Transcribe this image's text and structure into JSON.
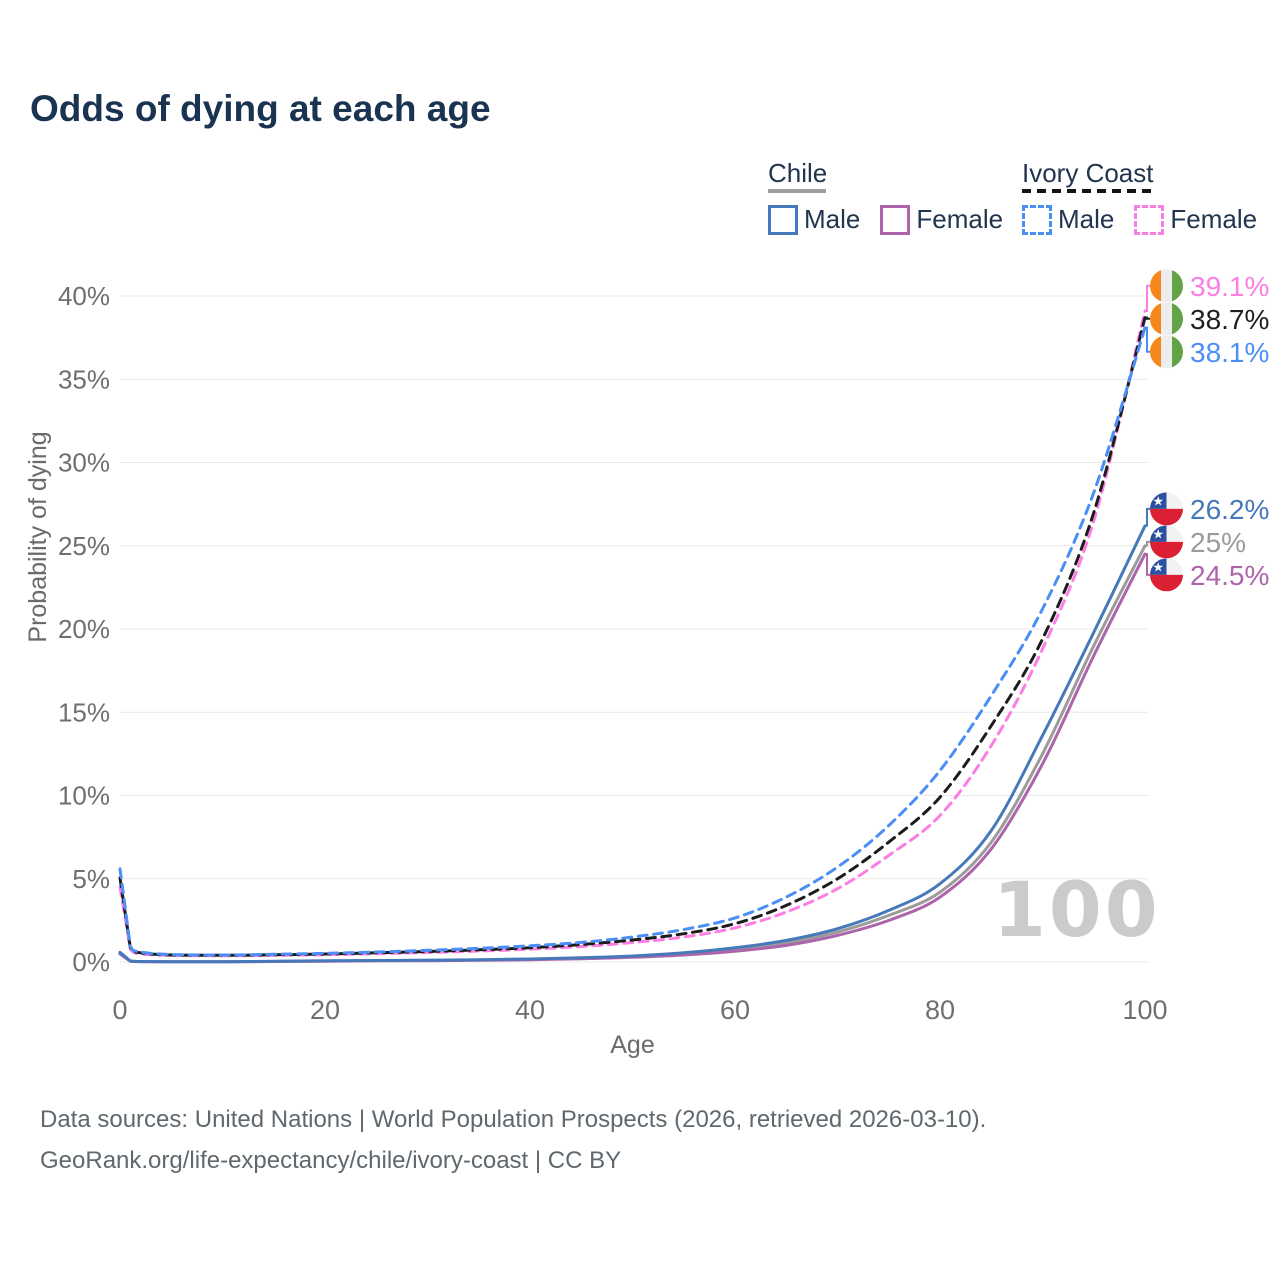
{
  "title": "Odds of dying at each age",
  "legend": {
    "chile": {
      "country": "Chile",
      "male_label": "Male",
      "female_label": "Female",
      "male_color": "#4679BA",
      "female_color": "#AD64AB",
      "underline_color": "#9e9e9e",
      "line_style": "solid"
    },
    "ivory_coast": {
      "country": "Ivory Coast",
      "male_label": "Male",
      "female_label": "Female",
      "male_color": "#4B8EF5",
      "female_color": "#FB7EE4",
      "underline_color": "#141414",
      "line_style": "dashed"
    }
  },
  "footer": {
    "line1": "Data sources: United Nations | World Population Prospects (2026, retrieved 2026-03-10).",
    "line2": "GeoRank.org/life-expectancy/chile/ivory-coast | CC BY"
  },
  "chart_data": {
    "type": "line",
    "title": "Odds of dying at each age",
    "xlabel": "Age",
    "ylabel": "Probability of dying",
    "xlim": [
      0,
      100
    ],
    "ylim": [
      0,
      40
    ],
    "grid": true,
    "age_indicator": "100",
    "x_tick_values": [
      0,
      20,
      40,
      60,
      80,
      100
    ],
    "x_tick_labels": [
      "0",
      "20",
      "40",
      "60",
      "80",
      "100"
    ],
    "y_tick_values": [
      0,
      5,
      10,
      15,
      20,
      25,
      30,
      35,
      40
    ],
    "y_tick_labels": [
      "0%",
      "5%",
      "10%",
      "15%",
      "20%",
      "25%",
      "30%",
      "35%",
      "40%"
    ],
    "x": [
      0,
      1,
      2,
      5,
      10,
      15,
      20,
      25,
      30,
      35,
      40,
      45,
      50,
      55,
      60,
      65,
      70,
      75,
      80,
      85,
      90,
      95,
      100
    ],
    "series": [
      {
        "name": "Chile Both sexes",
        "country": "Chile",
        "sex": "Both",
        "flag": "chile",
        "color": "#9B9B9B",
        "label_color": "#9a9a9a",
        "dashed": false,
        "end_label": "25%",
        "end_value": 25.0,
        "values": [
          0.53,
          0.05,
          0.03,
          0.02,
          0.02,
          0.03,
          0.06,
          0.08,
          0.1,
          0.12,
          0.16,
          0.22,
          0.32,
          0.48,
          0.75,
          1.15,
          1.8,
          2.8,
          4.2,
          7.2,
          12.5,
          19.0,
          25.0
        ]
      },
      {
        "name": "Chile Female",
        "country": "Chile",
        "sex": "Female",
        "flag": "chile",
        "color": "#AD64AB",
        "label_color": "#AD64AB",
        "dashed": false,
        "end_label": "24.5%",
        "end_value": 24.5,
        "values": [
          0.48,
          0.04,
          0.02,
          0.02,
          0.02,
          0.03,
          0.05,
          0.07,
          0.08,
          0.1,
          0.14,
          0.19,
          0.28,
          0.42,
          0.65,
          1.0,
          1.6,
          2.5,
          3.9,
          6.8,
          11.9,
          18.4,
          24.5
        ]
      },
      {
        "name": "Chile Male",
        "country": "Chile",
        "sex": "Male",
        "flag": "chile",
        "color": "#4679BA",
        "label_color": "#4679BA",
        "dashed": false,
        "end_label": "26.2%",
        "end_value": 26.2,
        "values": [
          0.58,
          0.06,
          0.03,
          0.02,
          0.02,
          0.04,
          0.07,
          0.09,
          0.11,
          0.14,
          0.18,
          0.25,
          0.36,
          0.55,
          0.85,
          1.3,
          2.0,
          3.1,
          4.7,
          7.9,
          13.6,
          19.8,
          26.2
        ]
      },
      {
        "name": "Ivory Coast Female",
        "country": "Ivory Coast",
        "sex": "Female",
        "flag": "ivory_coast",
        "color": "#FB7EE4",
        "label_color": "#FB7EE4",
        "dashed": true,
        "end_label": "39.1%",
        "end_value": 39.1,
        "values": [
          4.5,
          0.8,
          0.5,
          0.4,
          0.37,
          0.4,
          0.44,
          0.5,
          0.57,
          0.66,
          0.77,
          0.93,
          1.17,
          1.5,
          2.05,
          3.0,
          4.4,
          6.4,
          8.8,
          13.0,
          18.8,
          26.5,
          39.1
        ]
      },
      {
        "name": "Ivory Coast Both sexes",
        "country": "Ivory Coast",
        "sex": "Both",
        "flag": "ivory_coast",
        "color": "#1C1C1C",
        "label_color": "#1f1f1f",
        "dashed": true,
        "end_label": "38.7%",
        "end_value": 38.7,
        "values": [
          5.05,
          0.88,
          0.55,
          0.42,
          0.4,
          0.43,
          0.48,
          0.55,
          0.63,
          0.73,
          0.86,
          1.05,
          1.32,
          1.7,
          2.3,
          3.4,
          5.0,
          7.2,
          9.9,
          14.2,
          19.4,
          27.0,
          38.7
        ]
      },
      {
        "name": "Ivory Coast Male",
        "country": "Ivory Coast",
        "sex": "Male",
        "flag": "ivory_coast",
        "color": "#4B8EF5",
        "label_color": "#4B8EF5",
        "dashed": true,
        "end_label": "38.1%",
        "end_value": 38.1,
        "values": [
          5.6,
          0.95,
          0.6,
          0.45,
          0.42,
          0.46,
          0.52,
          0.6,
          0.7,
          0.82,
          0.97,
          1.18,
          1.5,
          1.95,
          2.65,
          3.9,
          5.7,
          8.2,
          11.5,
          16.0,
          21.2,
          28.2,
          38.1
        ]
      }
    ],
    "flag_colors": {
      "chile": {
        "blue": "#2B50A1",
        "red": "#DA2032",
        "white": "#F2F2F2"
      },
      "ivory_coast": {
        "orange": "#F6871D",
        "white": "#EDEDED",
        "green": "#61A346"
      }
    },
    "grid_color": "#e9e9e9",
    "tick_color": "#6f6f6f",
    "axis_title_color": "#6b6b6b"
  }
}
